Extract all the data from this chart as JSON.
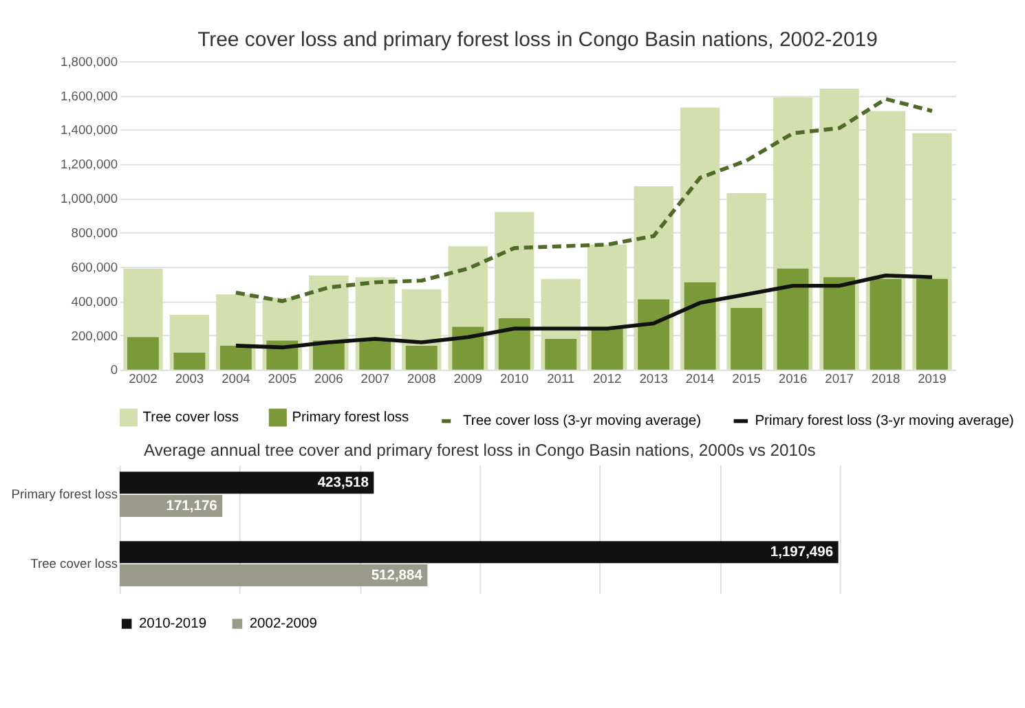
{
  "chart_data": [
    {
      "type": "bar",
      "title": "Tree cover loss and primary forest loss in Congo Basin nations, 2002-2019",
      "categories": [
        "2002",
        "2003",
        "2004",
        "2005",
        "2006",
        "2007",
        "2008",
        "2009",
        "2010",
        "2011",
        "2012",
        "2013",
        "2014",
        "2015",
        "2016",
        "2017",
        "2018",
        "2019"
      ],
      "series": [
        {
          "name": "Tree cover loss",
          "type": "bar",
          "color": "#d3dfae",
          "values": [
            590000,
            320000,
            440000,
            420000,
            550000,
            540000,
            470000,
            720000,
            920000,
            530000,
            730000,
            1070000,
            1530000,
            1030000,
            1590000,
            1640000,
            1510000,
            1380000
          ]
        },
        {
          "name": "Primary forest loss",
          "type": "bar",
          "color": "#7a9a3a",
          "values": [
            190000,
            100000,
            140000,
            170000,
            170000,
            180000,
            140000,
            250000,
            300000,
            180000,
            240000,
            410000,
            510000,
            360000,
            590000,
            540000,
            530000,
            530000
          ]
        },
        {
          "name": "Tree cover loss (3-yr moving average)",
          "type": "line",
          "line_style": "dashed",
          "color": "#4f6b28",
          "values": [
            null,
            null,
            450000,
            400000,
            480000,
            510000,
            520000,
            590000,
            710000,
            720000,
            730000,
            780000,
            1120000,
            1220000,
            1380000,
            1410000,
            1580000,
            1510000
          ]
        },
        {
          "name": "Primary forest loss (3-yr moving average)",
          "type": "line",
          "line_style": "solid",
          "color": "#111111",
          "values": [
            null,
            null,
            140000,
            130000,
            160000,
            180000,
            160000,
            190000,
            240000,
            240000,
            240000,
            270000,
            390000,
            440000,
            490000,
            490000,
            550000,
            540000
          ]
        }
      ],
      "ylim": [
        0,
        1800000
      ],
      "yticks": [
        0,
        {
          "value": 200000,
          "label": "200,000"
        },
        {
          "value": 400000,
          "label": "400,000"
        },
        {
          "value": 600000,
          "label": "600,000"
        },
        {
          "value": 800000,
          "label": "800,000"
        },
        {
          "value": 1000000,
          "label": "1,000,000"
        },
        {
          "value": 1200000,
          "label": "1,200,000"
        },
        {
          "value": 1400000,
          "label": "1,400,000"
        },
        {
          "value": 1600000,
          "label": "1,600,000"
        },
        {
          "value": 1800000,
          "label": "1,800,000"
        }
      ],
      "grid": "y",
      "legend": "bottom"
    },
    {
      "type": "bar",
      "orientation": "horizontal",
      "title": "Average annual tree cover and primary forest loss in Congo Basin nations, 2000s vs 2010s",
      "categories": [
        "Primary forest loss",
        "Tree cover loss"
      ],
      "series": [
        {
          "name": "2010-2019",
          "color": "#111111",
          "values": [
            423518,
            1197496
          ],
          "value_labels": [
            "423,518",
            "1,197,496"
          ]
        },
        {
          "name": "2002-2009",
          "color": "#9b9b8c",
          "values": [
            171176,
            512884
          ],
          "value_labels": [
            "171,176",
            "512,884"
          ]
        }
      ],
      "xlim": [
        0,
        1200000
      ],
      "xticks": [
        {
          "value": 0,
          "label": null
        },
        {
          "value": 200000,
          "label": null
        },
        {
          "value": 400000,
          "label": null
        },
        {
          "value": 600000,
          "label": null
        },
        {
          "value": 800000,
          "label": null
        },
        {
          "value": 1000000,
          "label": null
        },
        {
          "value": 1200000,
          "label": null
        }
      ],
      "grid": "x",
      "tick_labels": "y",
      "legend": "bottom"
    }
  ]
}
